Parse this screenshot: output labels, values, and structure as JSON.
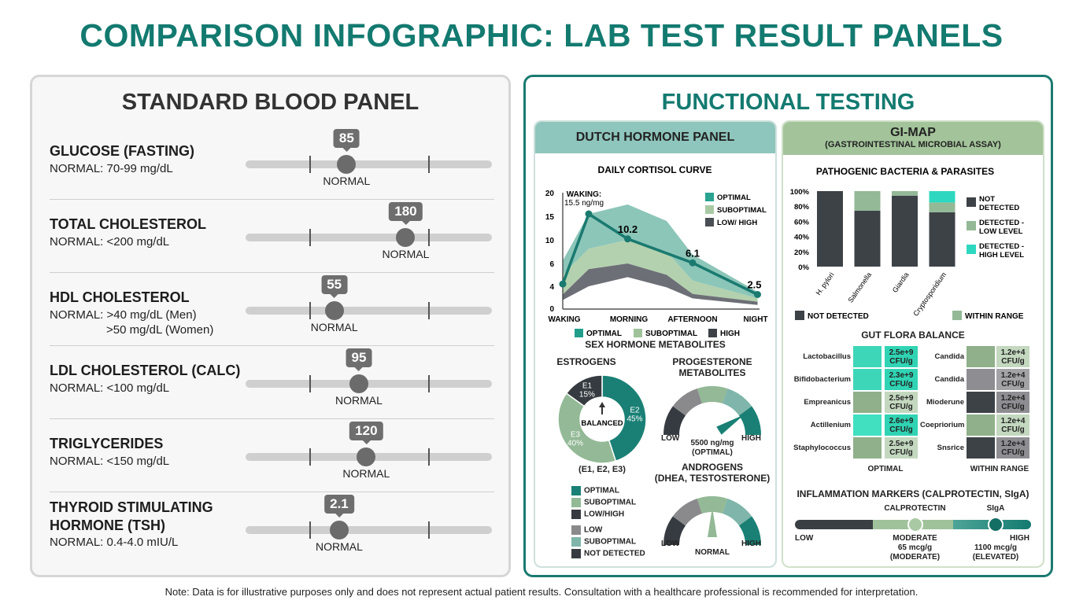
{
  "title": "COMPARISON INFOGRAPHIC: LAB TEST RESULT PANELS",
  "standard": {
    "title": "STANDARD BLOOD PANEL",
    "rows": [
      {
        "name": "GLUCOSE (FASTING)",
        "normal": "NORMAL: 70-99 mg/dL",
        "normal2": "",
        "value": "85",
        "status": "NORMAL",
        "marker_position": 0.41
      },
      {
        "name": "TOTAL CHOLESTEROL",
        "normal": "NORMAL: <200 mg/dL",
        "normal2": "",
        "value": "180",
        "status": "NORMAL",
        "marker_position": 0.65
      },
      {
        "name": "HDL CHOLESTEROL",
        "normal": "NORMAL: >40 mg/dL (Men)",
        "normal2": ">50 mg/dL (Women)",
        "value": "55",
        "status": "NORMAL",
        "marker_position": 0.36
      },
      {
        "name": "LDL CHOLESTEROL (CALC)",
        "normal": "NORMAL: <100 mg/dL",
        "normal2": "",
        "value": "95",
        "status": "NORMAL",
        "marker_position": 0.46
      },
      {
        "name": "TRIGLYCERIDES",
        "normal": "NORMAL: <150 mg/dL",
        "normal2": "",
        "value": "120",
        "status": "NORMAL",
        "marker_position": 0.49
      },
      {
        "name": "THYROID STIMULATING",
        "name2": "HORMONE (TSH)",
        "normal": "NORMAL: 0.4-4.0 mIU/L",
        "normal2": "",
        "value": "2.1",
        "status": "NORMAL",
        "marker_position": 0.38
      }
    ]
  },
  "functional": {
    "title": "FUNCTIONAL TESTING",
    "dutch": {
      "title": "DUTCH HORMONE PANEL",
      "sex_title": "SEX HORMONE METABOLITES",
      "estrogens": {
        "title": "ESTROGENS",
        "center": "BALANCED",
        "subtitle": "(E1, E2, E3)",
        "slices": [
          {
            "label": "E2",
            "pct": "45%",
            "value": 45,
            "color": "#1a8075"
          },
          {
            "label": "E3",
            "pct": "40%",
            "value": 40,
            "color": "#93b996"
          },
          {
            "label": "E1",
            "pct": "15%",
            "value": 15,
            "color": "#353b40"
          }
        ],
        "legend": [
          {
            "label": "OPTIMAL",
            "color": "#1a8075"
          },
          {
            "label": "SUBOPTIMAL",
            "color": "#93b996"
          },
          {
            "label": "LOW/HIGH",
            "color": "#353b40"
          },
          {
            "label": "LOW",
            "color": "#8a8a8c"
          },
          {
            "label": "SUBOPTIMAL",
            "color": "#7fb5aa"
          },
          {
            "label": "NOT DETECTED",
            "color": "#353b40"
          }
        ]
      },
      "progesterone": {
        "title": "PROGESTERONE",
        "title2": "METABOLITES",
        "low": "LOW",
        "high": "HIGH",
        "value": "5500 ng/mg",
        "status": "(OPTIMAL)",
        "needle_level": 0.82
      },
      "androgens": {
        "title": "ANDROGENS",
        "title2": "(DHEA, TESTOSTERONE)",
        "low": "LOW",
        "high": "HIGH",
        "status": "NORMAL",
        "needle_level": 0.5
      },
      "gauge_colors": [
        "#353b40",
        "#8a8a8c",
        "#93b996",
        "#7fb5aa",
        "#1a8075"
      ]
    },
    "gimap": {
      "title": "GI-MAP",
      "subtitle": "(GASTROINTESTINAL MICROBIAL ASSAY)",
      "flora": {
        "title": "GUT FLORA BALANCE",
        "left_label": "OPTIMAL",
        "right_label": "WITHIN RANGE",
        "left": [
          {
            "name": "Lactobacillus",
            "value": "2.5e+9",
            "unit": "CFU/g",
            "color": "#3dd6b8"
          },
          {
            "name": "Bifidobacterium",
            "value": "2.3e+9",
            "unit": "CFU/g",
            "color": "#3dd6b8"
          },
          {
            "name": "Empreanicus",
            "value": "2.5e+9",
            "unit": "CFU/g",
            "color": "#8fb08a"
          },
          {
            "name": "Actillenium",
            "value": "2.6e+9",
            "unit": "CFU/g",
            "color": "#40e0c0"
          },
          {
            "name": "Staphylococcus",
            "value": "2.5e+9",
            "unit": "CFU/g",
            "color": "#8fb08a"
          }
        ],
        "right": [
          {
            "name": "Candida",
            "value": "1.2e+4",
            "unit": "CFU/g",
            "color": "#8fb08a"
          },
          {
            "name": "Candida",
            "value": "1.2e+4",
            "unit": "CFU/g",
            "color": "#8e8e92"
          },
          {
            "name": "Mioderune",
            "value": "1.2e+4",
            "unit": "CFU/g",
            "color": "#3d4247"
          },
          {
            "name": "Coepriorium",
            "value": "1.2e+4",
            "unit": "CFU/g",
            "color": "#8fb08a"
          },
          {
            "name": "Snsrice",
            "value": "1.2e+4",
            "unit": "CFU/g",
            "color": "#3d4247"
          }
        ]
      },
      "inflammation": {
        "title": "INFLAMMATION MARKERS (CALPROTECTIN, SIgA)",
        "low": "LOW",
        "high": "HIGH",
        "calprotectin": {
          "label": "CALPROTECTIN",
          "status": "MODERATE",
          "value": "65 mcg/g",
          "note": "(MODERATE)",
          "level": 0.51
        },
        "siga": {
          "label": "SIgA",
          "value": "1100 mcg/g",
          "note": "(ELEVATED)",
          "level": 0.85
        }
      }
    }
  },
  "chart_data": [
    {
      "type": "area+line",
      "title": "DAILY CORTISOL CURVE",
      "categories": [
        "WAKING",
        "MORNING",
        "AFTERNOON",
        "NIGHT"
      ],
      "yticks": [
        0,
        4,
        6,
        10,
        15,
        20
      ],
      "ylim": [
        0,
        20
      ],
      "line": {
        "x": [
          0,
          0.4,
          1,
          2,
          3
        ],
        "y": [
          4.2,
          15.5,
          10.2,
          6.1,
          2.5
        ],
        "labels": [
          "",
          "",
          "10.2",
          "6.1",
          "2.5"
        ],
        "color": "#1a7a70"
      },
      "annotation": {
        "line1": "WAKING:",
        "line2": "15.5 ng/mg"
      },
      "bands": {
        "x": [
          0,
          0.4,
          1,
          1.6,
          2,
          3
        ],
        "optimal_top": [
          6.5,
          15.5,
          17.5,
          14,
          7.5,
          3
        ],
        "suboptimal_top": [
          5,
          8.5,
          10,
          8,
          4.5,
          1.8
        ],
        "low_top": [
          2.5,
          5.5,
          6,
          5,
          2.6,
          1.2
        ],
        "low_bottom": [
          1.5,
          4,
          4.8,
          3.8,
          1.8,
          0.6
        ]
      },
      "legend": [
        {
          "label": "OPTIMAL",
          "color": "#2aa391"
        },
        {
          "label": "SUBOPTIMAL",
          "color": "#a9c9a4"
        },
        {
          "label": "LOW/ HIGH",
          "color": "#4a4e55"
        }
      ],
      "bottom_legend": [
        {
          "label": "OPTIMAL",
          "color": "#1f9e8c"
        },
        {
          "label": "SUBOPTIMAL",
          "color": "#9fc29b"
        },
        {
          "label": "HIGH",
          "color": "#3d4247"
        }
      ]
    },
    {
      "type": "stacked-bar",
      "title": "PATHOGENIC BACTERIA & PARASITES",
      "categories": [
        "H. pylori",
        "Salmonella",
        "Giardia",
        "Cryptosporidium"
      ],
      "yticks": [
        "0%",
        "20%",
        "40%",
        "60%",
        "80%",
        "100%"
      ],
      "ylim": [
        0,
        100
      ],
      "series": [
        {
          "name": "NOT DETECTED",
          "values": [
            100,
            74,
            94,
            72
          ],
          "color": "#3d4247"
        },
        {
          "name": "DETECTED - LOW LEVEL",
          "values": [
            0,
            26,
            6,
            13
          ],
          "color": "#93b996"
        },
        {
          "name": "DETECTED - HIGH LEVEL",
          "values": [
            0,
            0,
            0,
            15
          ],
          "color": "#2ed8c0"
        }
      ],
      "bottom_legend": [
        {
          "label": "NOT DETECTED",
          "color": "#3d4247"
        },
        {
          "label": "WITHIN RANGE",
          "color": "#93b996"
        }
      ]
    }
  ],
  "note": "Note: Data is for illustrative purposes only and does not represent actual patient results. Consultation with a healthcare professional is recommended for interpretation."
}
